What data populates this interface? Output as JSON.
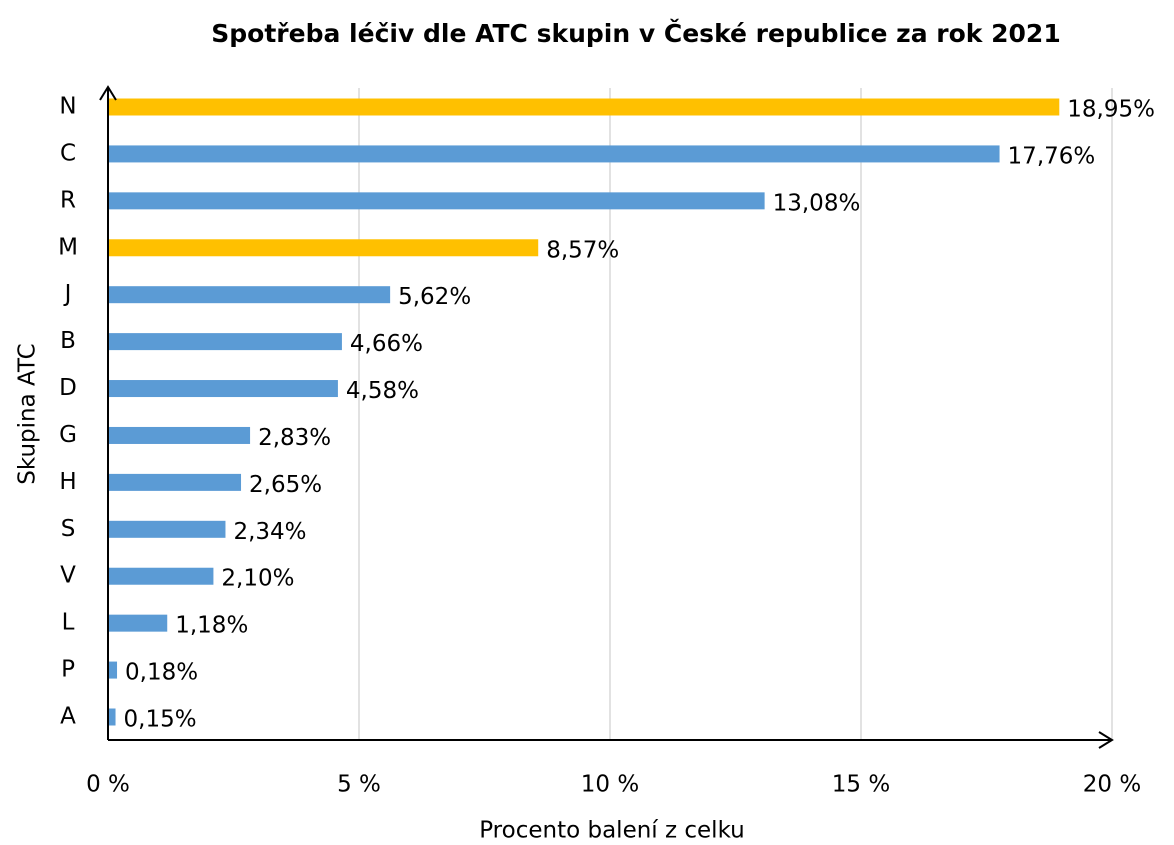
{
  "chart_data": {
    "type": "barh",
    "title": "Spotřeba léčiv dle ATC skupin v České republice za rok 2021",
    "xlabel": "Procento balení z celku",
    "ylabel": "Skupina ATC",
    "categories": [
      "N",
      "C",
      "R",
      "M",
      "J",
      "B",
      "D",
      "G",
      "H",
      "S",
      "V",
      "L",
      "P",
      "A"
    ],
    "values": [
      18.95,
      17.76,
      13.08,
      8.57,
      5.62,
      4.66,
      4.58,
      2.83,
      2.65,
      2.34,
      2.1,
      1.18,
      0.18,
      0.15
    ],
    "value_labels": [
      "18,95%",
      "17,76%",
      "13,08%",
      "8,57%",
      "5,62%",
      "4,66%",
      "4,58%",
      "2,83%",
      "2,65%",
      "2,34%",
      "2,10%",
      "1,18%",
      "0,18%",
      "0,15%"
    ],
    "colors": [
      "#ffc000",
      "#5b9bd5",
      "#5b9bd5",
      "#ffc000",
      "#5b9bd5",
      "#5b9bd5",
      "#5b9bd5",
      "#5b9bd5",
      "#5b9bd5",
      "#5b9bd5",
      "#5b9bd5",
      "#5b9bd5",
      "#5b9bd5",
      "#5b9bd5"
    ],
    "xlim": [
      0,
      20
    ],
    "xticks": [
      {
        "value": 0,
        "label": "0 %"
      },
      {
        "value": 5,
        "label": "5 %"
      },
      {
        "value": 10,
        "label": "10 %"
      },
      {
        "value": 15,
        "label": "15 %"
      },
      {
        "value": 20,
        "label": "20 %"
      }
    ],
    "grid": true
  }
}
